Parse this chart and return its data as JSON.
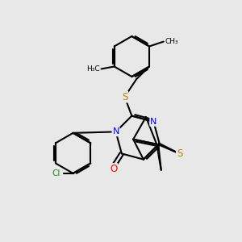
{
  "background_color": "#e8e8e8",
  "atom_colors": {
    "S": "#b8860b",
    "N": "#0000ff",
    "O": "#ff0000",
    "Cl": "#228B22",
    "C": "#000000"
  },
  "bond_color": "#000000",
  "bond_width": 1.5,
  "figsize": [
    3.0,
    3.0
  ],
  "dpi": 100
}
